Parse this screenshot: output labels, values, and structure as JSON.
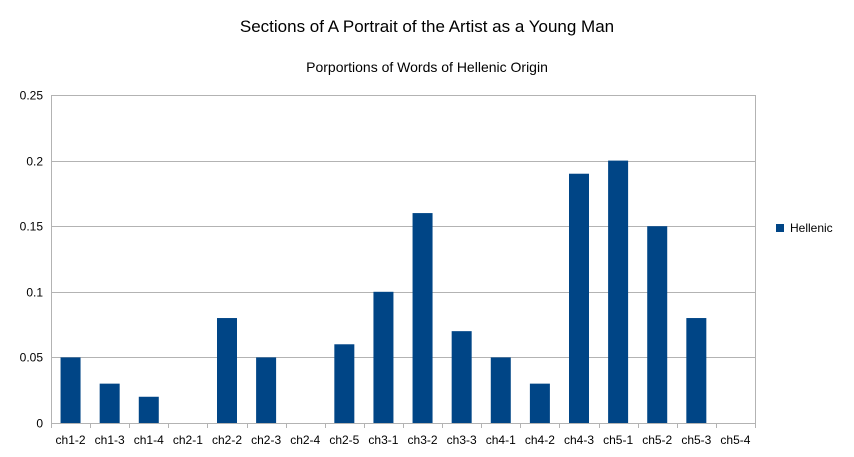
{
  "chart_data": {
    "type": "bar",
    "title": "Sections of A Portrait of the Artist as a Young Man",
    "subtitle": "Porportions of Words of Hellenic Origin",
    "categories": [
      "ch1-2",
      "ch1-3",
      "ch1-4",
      "ch2-1",
      "ch2-2",
      "ch2-3",
      "ch2-4",
      "ch2-5",
      "ch3-1",
      "ch3-2",
      "ch3-3",
      "ch4-1",
      "ch4-2",
      "ch4-3",
      "ch5-1",
      "ch5-2",
      "ch5-3",
      "ch5-4"
    ],
    "series": [
      {
        "name": "Hellenic",
        "color": "#004586",
        "values": [
          0.05,
          0.03,
          0.02,
          0,
          0.08,
          0.05,
          0,
          0.06,
          0.1,
          0.16,
          0.07,
          0.05,
          0.03,
          0.19,
          0.2,
          0.15,
          0.08,
          0
        ]
      }
    ],
    "ylim": [
      0,
      0.25
    ],
    "yticks": [
      "0",
      "0.05",
      "0.1",
      "0.15",
      "0.2",
      "0.25"
    ],
    "grid": true,
    "legend_position": "right"
  }
}
